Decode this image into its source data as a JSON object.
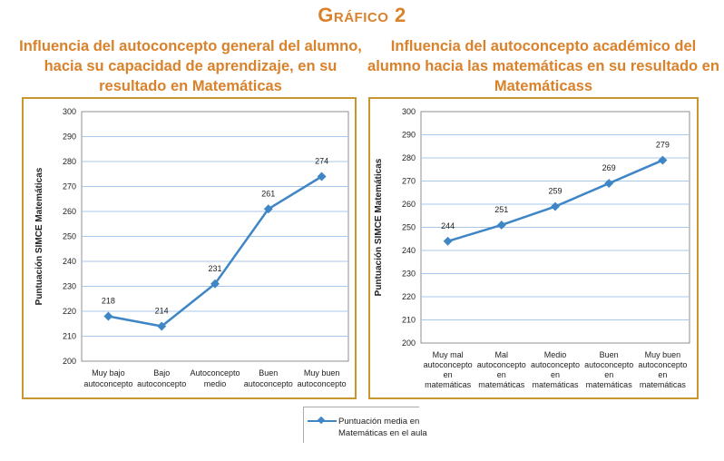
{
  "header": {
    "title": "Gráfico 2"
  },
  "colors": {
    "title": "#d9822b",
    "frame": "#c8962e",
    "line": "#3f86c6",
    "grid": "#a9c8e8"
  },
  "chart_data": [
    {
      "type": "line",
      "title": "Influencia del autoconcepto general del alumno, hacia su capacidad de aprendizaje, en su resultado en Matemáticas",
      "ylabel": "Puntuación SIMCE  Matemáticas",
      "ylim": [
        200,
        300
      ],
      "yticks": [
        "200",
        "210",
        "220",
        "230",
        "240",
        "250",
        "260",
        "270",
        "280",
        "290",
        "300"
      ],
      "categories": [
        [
          "Muy bajo",
          "autoconcepto"
        ],
        [
          "Bajo",
          "autoconcepto"
        ],
        [
          "Autoconcepto",
          "medio"
        ],
        [
          "Buen",
          "autoconcepto"
        ],
        [
          "Muy buen",
          "autoconcepto"
        ]
      ],
      "series": [
        {
          "name": "Puntuación media en Matemáticas en el aula",
          "values": [
            218,
            214,
            231,
            261,
            274
          ],
          "labels": [
            "218",
            "214",
            "231",
            "261",
            "274"
          ]
        }
      ],
      "grid": true
    },
    {
      "type": "line",
      "title": "Influencia del autoconcepto académico del alumno hacia las matemáticas en su resultado en Matemáticass",
      "ylabel": "Puntuación SIMCE Matemáticas",
      "ylim": [
        200,
        300
      ],
      "yticks": [
        "200",
        "210",
        "220",
        "230",
        "240",
        "250",
        "260",
        "270",
        "280",
        "290",
        "300"
      ],
      "categories": [
        [
          "Muy mal",
          "autoconcepto",
          "en",
          "matemáticas"
        ],
        [
          "Mal",
          "autoconcepto",
          "en",
          "matemáticas"
        ],
        [
          "Medio",
          "autoconcepto",
          "en",
          "matemáticas"
        ],
        [
          "Buen",
          "autoconcepto",
          "en",
          "matemáticas"
        ],
        [
          "Muy buen",
          "autoconcepto",
          "en",
          "matemáticas"
        ]
      ],
      "series": [
        {
          "name": "Puntuación media en Matemáticas en el aula",
          "values": [
            244,
            251,
            259,
            269,
            279
          ],
          "labels": [
            "244",
            "251",
            "259",
            "269",
            "279"
          ]
        }
      ],
      "grid": true
    }
  ],
  "legend": {
    "lines": [
      "Puntuación media en",
      "Matemáticas en el aula"
    ],
    "position": "bottom-center"
  }
}
